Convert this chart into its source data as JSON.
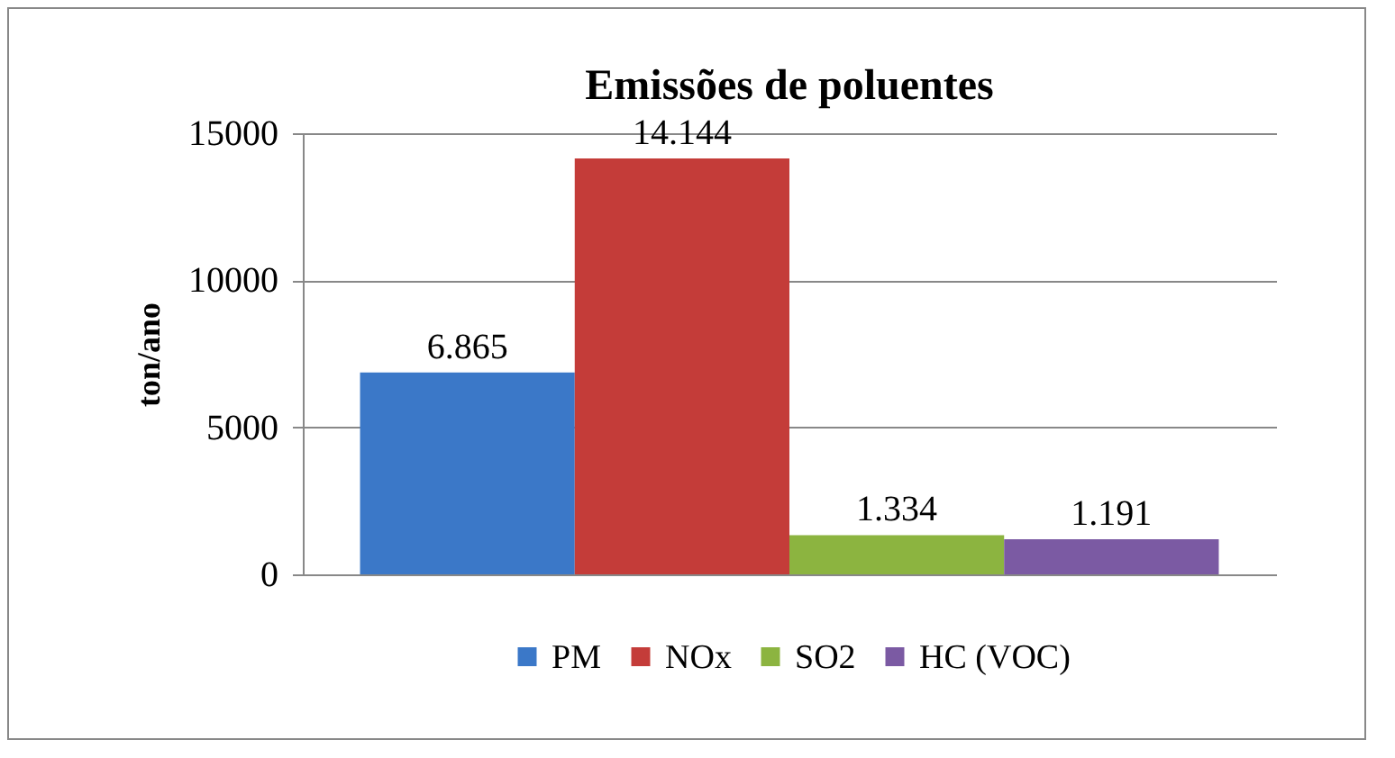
{
  "chart_data": {
    "type": "bar",
    "title": "Emissões de poluentes",
    "ylabel": "ton/ano",
    "categories": [
      null
    ],
    "series": [
      {
        "name": "PM",
        "color": "#3b78c8",
        "values": [
          6865
        ],
        "value_labels": [
          "6.865"
        ]
      },
      {
        "name": "NOx",
        "color": "#c43c39",
        "values": [
          14144
        ],
        "value_labels": [
          "14.144"
        ]
      },
      {
        "name": "SO2",
        "color": "#8cb440",
        "values": [
          1334
        ],
        "value_labels": [
          "1.334"
        ]
      },
      {
        "name": "HC (VOC)",
        "color": "#7b5aa3",
        "values": [
          1191
        ],
        "value_labels": [
          "1.191"
        ]
      }
    ],
    "ylim": [
      0,
      15000
    ],
    "yticks": [
      0,
      5000,
      10000,
      15000
    ],
    "grid": "y",
    "legend": "bottom",
    "tick_labels": "y"
  }
}
